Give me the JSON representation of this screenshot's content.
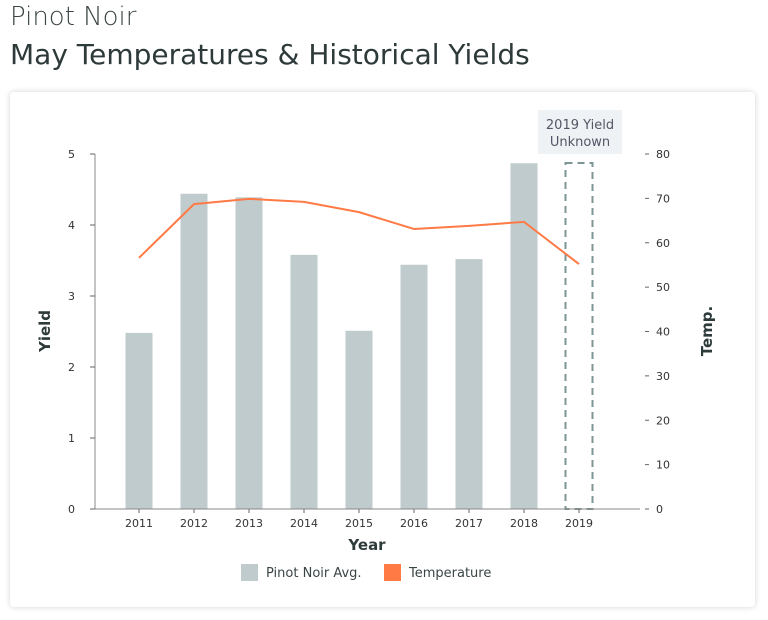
{
  "header": {
    "subtitle": "Pinot Noir",
    "title": "May Temperatures & Historical Yields"
  },
  "chart_data": {
    "type": "bar+line",
    "categories": [
      "2011",
      "2012",
      "2013",
      "2014",
      "2015",
      "2016",
      "2017",
      "2018",
      "2019"
    ],
    "series": [
      {
        "name": "Pinot Noir Avg.",
        "type": "bar",
        "axis": "left",
        "color": "#bfcbcc",
        "values": [
          2.48,
          4.44,
          4.39,
          3.58,
          2.51,
          3.44,
          3.52,
          4.87,
          null
        ]
      },
      {
        "name": "Temperature",
        "type": "line",
        "axis": "right",
        "color": "#ff7a45",
        "values": [
          56.6,
          68.7,
          69.9,
          69.2,
          66.9,
          63.1,
          63.8,
          64.7,
          55.2
        ]
      }
    ],
    "xlabel": "Year",
    "ylabel": "Yield",
    "y2label": "Temp.",
    "ylim": [
      0,
      5
    ],
    "yticks": [
      "0",
      "1",
      "2",
      "3",
      "4",
      "5"
    ],
    "y2lim": [
      0,
      80
    ],
    "y2ticks": [
      "0",
      "10",
      "20",
      "30",
      "40",
      "50",
      "60",
      "70",
      "80"
    ],
    "annotation": {
      "line1": "2019 Yield",
      "line2": "Unknown",
      "category": "2019"
    },
    "grid": false,
    "legend": "bottom"
  }
}
